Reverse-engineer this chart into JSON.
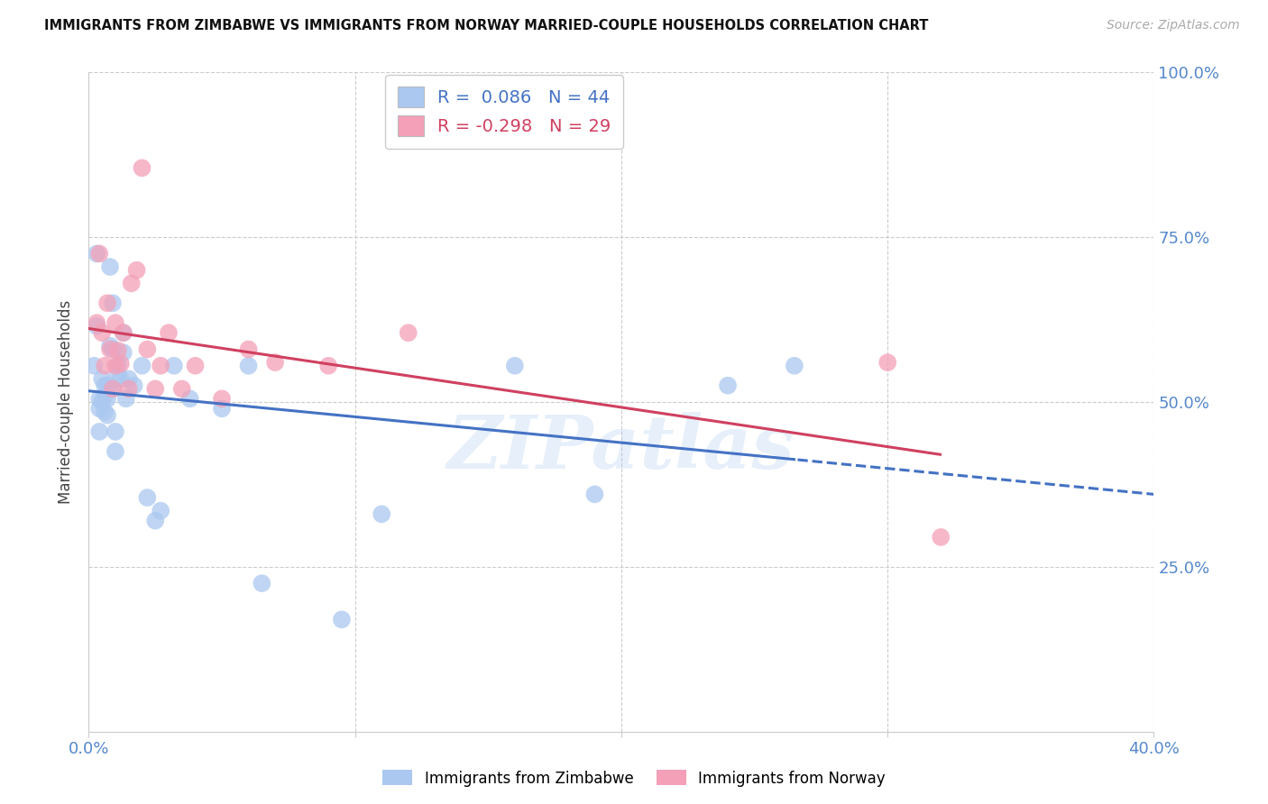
{
  "title": "IMMIGRANTS FROM ZIMBABWE VS IMMIGRANTS FROM NORWAY MARRIED-COUPLE HOUSEHOLDS CORRELATION CHART",
  "source": "Source: ZipAtlas.com",
  "ylabel": "Married-couple Households",
  "xlim": [
    0.0,
    0.4
  ],
  "ylim": [
    0.0,
    1.0
  ],
  "ytick_positions": [
    0.0,
    0.25,
    0.5,
    0.75,
    1.0
  ],
  "ytick_labels": [
    "",
    "25.0%",
    "50.0%",
    "75.0%",
    "100.0%"
  ],
  "xtick_positions": [
    0.0,
    0.1,
    0.2,
    0.3,
    0.4
  ],
  "xtick_labels": [
    "0.0%",
    "",
    "",
    "",
    "40.0%"
  ],
  "zimbabwe_color": "#aac8f0",
  "norway_color": "#f4a0b8",
  "zimbabwe_R": "0.086",
  "zimbabwe_N": "44",
  "norway_R": "-0.298",
  "norway_N": "29",
  "zimbabwe_x": [
    0.002,
    0.003,
    0.003,
    0.004,
    0.004,
    0.004,
    0.005,
    0.005,
    0.006,
    0.006,
    0.006,
    0.007,
    0.007,
    0.007,
    0.008,
    0.008,
    0.009,
    0.009,
    0.009,
    0.01,
    0.01,
    0.011,
    0.011,
    0.012,
    0.013,
    0.013,
    0.014,
    0.015,
    0.017,
    0.02,
    0.022,
    0.025,
    0.027,
    0.032,
    0.038,
    0.05,
    0.06,
    0.065,
    0.095,
    0.11,
    0.16,
    0.19,
    0.24,
    0.265
  ],
  "zimbabwe_y": [
    0.555,
    0.725,
    0.615,
    0.455,
    0.49,
    0.505,
    0.5,
    0.535,
    0.485,
    0.51,
    0.525,
    0.48,
    0.505,
    0.525,
    0.585,
    0.705,
    0.65,
    0.52,
    0.58,
    0.425,
    0.455,
    0.555,
    0.54,
    0.535,
    0.605,
    0.575,
    0.505,
    0.535,
    0.525,
    0.555,
    0.355,
    0.32,
    0.335,
    0.555,
    0.505,
    0.49,
    0.555,
    0.225,
    0.17,
    0.33,
    0.555,
    0.36,
    0.525,
    0.555
  ],
  "norway_x": [
    0.003,
    0.004,
    0.005,
    0.006,
    0.007,
    0.008,
    0.009,
    0.01,
    0.01,
    0.011,
    0.012,
    0.013,
    0.015,
    0.016,
    0.018,
    0.02,
    0.022,
    0.025,
    0.027,
    0.03,
    0.035,
    0.04,
    0.05,
    0.06,
    0.07,
    0.09,
    0.12,
    0.3,
    0.32
  ],
  "norway_y": [
    0.62,
    0.725,
    0.605,
    0.555,
    0.65,
    0.58,
    0.52,
    0.62,
    0.555,
    0.578,
    0.558,
    0.605,
    0.52,
    0.68,
    0.7,
    0.855,
    0.58,
    0.52,
    0.555,
    0.605,
    0.52,
    0.555,
    0.505,
    0.58,
    0.56,
    0.555,
    0.605,
    0.56,
    0.295
  ],
  "line_blue": "#4472c4",
  "line_pink": "#d04060",
  "watermark": "ZIPatlas",
  "background_color": "#ffffff",
  "grid_color": "#cccccc",
  "tick_color": "#5588cc",
  "title_color": "#111111",
  "source_color": "#aaaaaa"
}
